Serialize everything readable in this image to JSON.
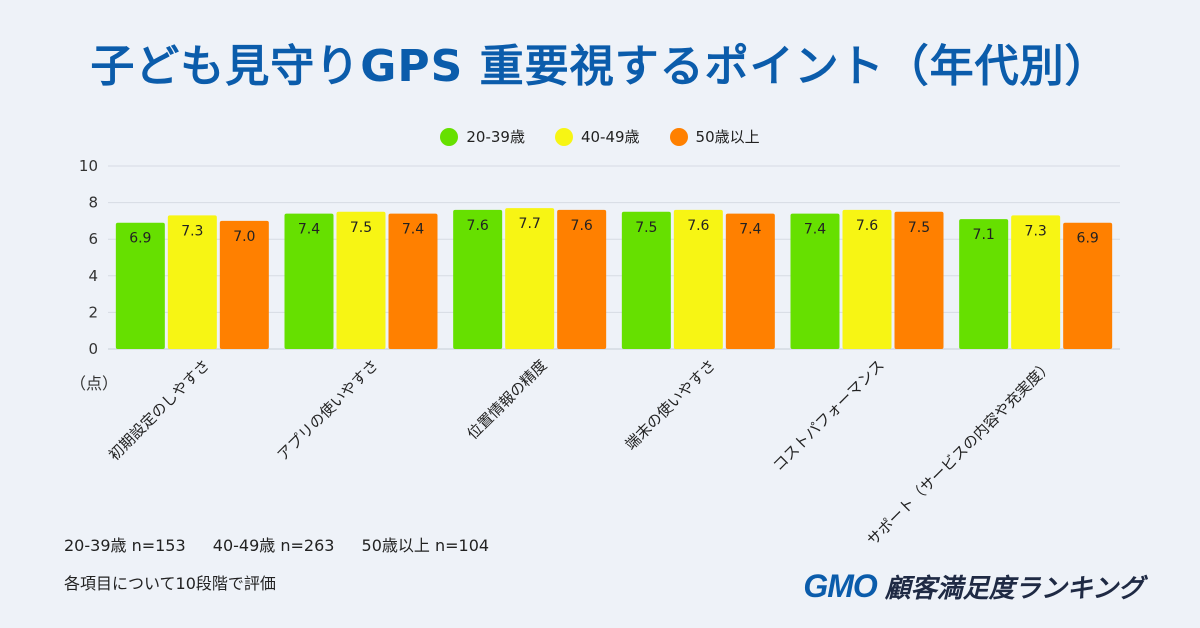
{
  "title": "子ども見守りGPS 重要視するポイント（年代別）",
  "legend": [
    {
      "label": "20-39歳",
      "color": "#66e000"
    },
    {
      "label": "40-49歳",
      "color": "#f7f514"
    },
    {
      "label": "50歳以上",
      "color": "#ff8000"
    }
  ],
  "chart_data": {
    "type": "bar",
    "title": "子ども見守りGPS 重要視するポイント（年代別）",
    "ylabel": "（点）",
    "ylim": [
      0,
      10
    ],
    "yticks": [
      0,
      2,
      4,
      6,
      8,
      10
    ],
    "categories": [
      "初期設定のしやすさ",
      "アプリの使いやすさ",
      "位置情報の精度",
      "端末の使いやすさ",
      "コストパフォーマンス",
      "サポート（サービスの内容や充実度）"
    ],
    "series": [
      {
        "name": "20-39歳",
        "color": "#66e000",
        "values": [
          6.9,
          7.4,
          7.6,
          7.5,
          7.4,
          7.1
        ]
      },
      {
        "name": "40-49歳",
        "color": "#f7f514",
        "values": [
          7.3,
          7.5,
          7.7,
          7.6,
          7.6,
          7.3
        ]
      },
      {
        "name": "50歳以上",
        "color": "#ff8000",
        "values": [
          7.0,
          7.4,
          7.6,
          7.4,
          7.5,
          6.9
        ]
      }
    ]
  },
  "footnotes": {
    "sample_a": "20-39歳 n=153",
    "sample_b": "40-49歳 n=263",
    "sample_c": "50歳以上 n=104",
    "method": "各項目について10段階で評価"
  },
  "brand": {
    "logo": "GMO",
    "text": "顧客満足度ランキング"
  }
}
